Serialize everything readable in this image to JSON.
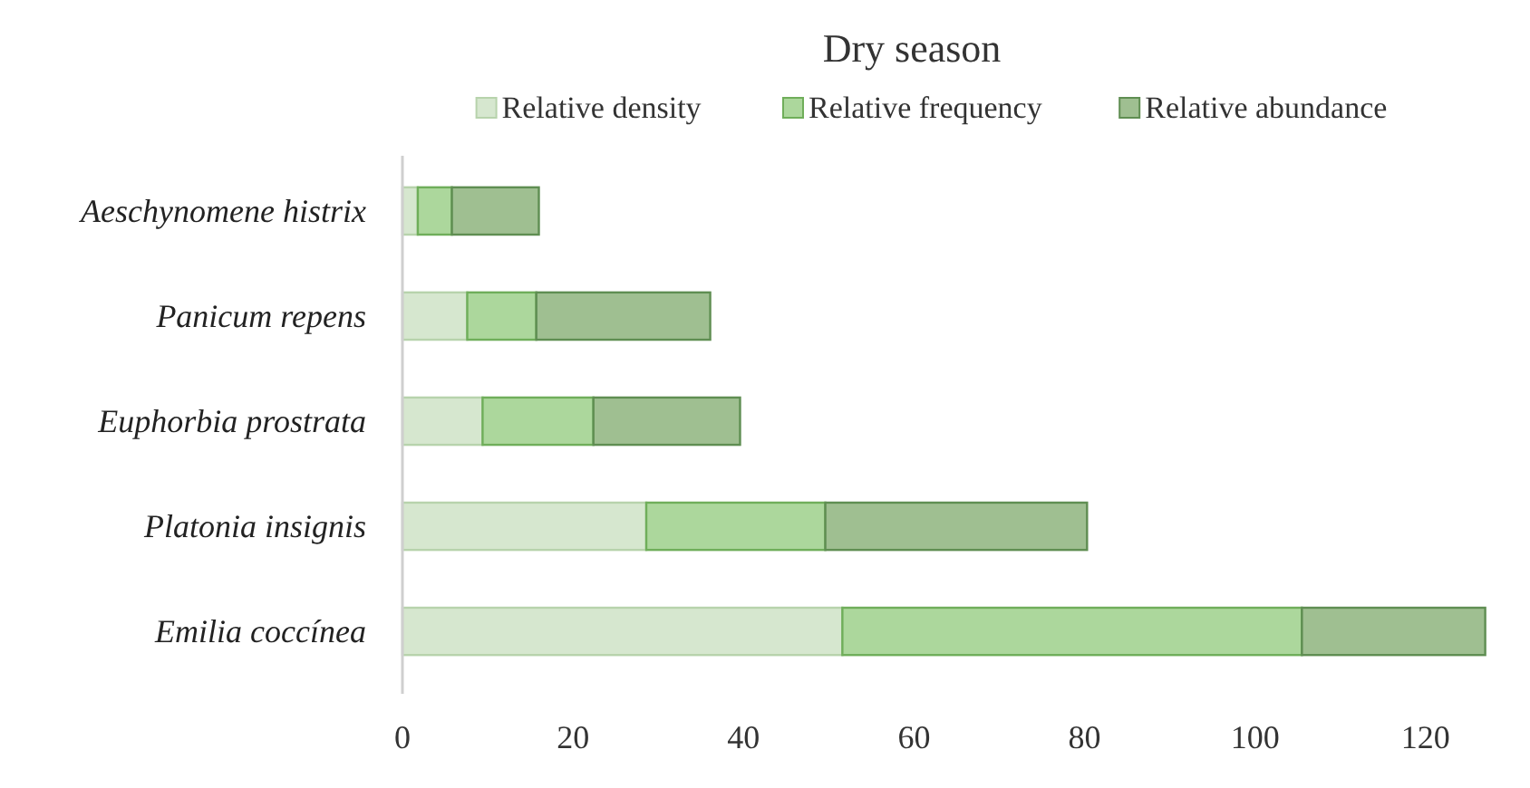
{
  "chart_data": {
    "type": "bar",
    "orientation": "horizontal",
    "stacked": true,
    "title": "Dry season",
    "categories": [
      "Aeschynomene histrix",
      "Panicum repens",
      "Euphorbia prostrata",
      "Platonia insignis",
      "Emilia coccínea"
    ],
    "series": [
      {
        "name": "Relative density",
        "color": "#d6e7cf",
        "values": [
          1.8,
          7.6,
          9.4,
          28.6,
          51.6
        ]
      },
      {
        "name": "Relative frequency",
        "color": "#acd79c",
        "values": [
          4.0,
          8.1,
          13.0,
          21.0,
          53.9
        ]
      },
      {
        "name": "Relative abundance",
        "color": "#9fbf91",
        "values": [
          10.2,
          20.4,
          17.2,
          30.7,
          21.5
        ]
      }
    ],
    "xlim": [
      0,
      128
    ],
    "xticks": [
      0,
      20,
      40,
      60,
      80,
      100,
      120
    ],
    "grid": false,
    "legend": "top"
  }
}
